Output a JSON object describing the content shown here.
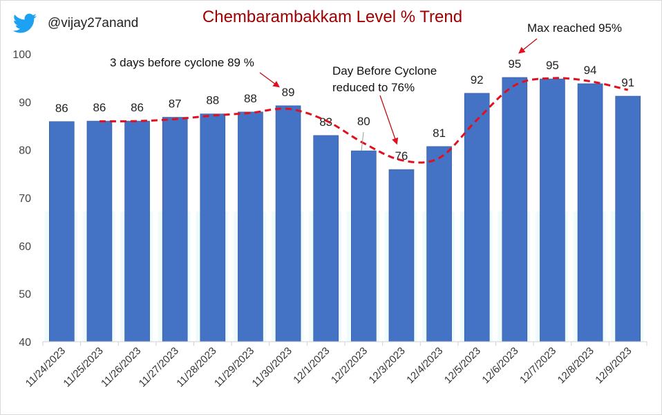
{
  "header": {
    "handle": "@vijay27anand",
    "logo_icon": "twitter-bird-icon",
    "logo_color": "#1DA1F2"
  },
  "chart_data": {
    "type": "bar",
    "title": "Chembarambakkam  Level % Trend",
    "title_color": "#a00000",
    "categories": [
      "11/24/2023",
      "11/25/2023",
      "11/26/2023",
      "11/27/2023",
      "11/28/2023",
      "11/29/2023",
      "11/30/2023",
      "12/1/2023",
      "12/2/2023",
      "12/3/2023",
      "12/4/2023",
      "12/5/2023",
      "12/6/2023",
      "12/7/2023",
      "12/8/2023",
      "12/9/2023"
    ],
    "values": [
      85.9,
      86.0,
      86.0,
      86.8,
      87.5,
      87.9,
      89.2,
      83.0,
      79.8,
      75.9,
      80.7,
      91.8,
      95.1,
      94.8,
      93.8,
      91.2
    ],
    "data_labels": [
      "86",
      "86",
      "86",
      "87",
      "88",
      "88",
      "89",
      "83",
      "80",
      "76",
      "81",
      "92",
      "95",
      "95",
      "94",
      "91"
    ],
    "ylim": [
      40,
      100
    ],
    "yticks": [
      "40",
      "50",
      "60",
      "70",
      "80",
      "90",
      "100"
    ],
    "grid": false,
    "legend": "none",
    "bar_color": "#4472c4",
    "trendline": {
      "type": "2-period moving average",
      "style": "dashed",
      "color": "#e0101e"
    },
    "annotations": [
      {
        "text": "3 days before cyclone 89 %",
        "target": "11/30/2023"
      },
      {
        "text": "Day Before Cyclone",
        "text2": "reduced to 76%",
        "target": "12/3/2023"
      },
      {
        "text": "Max reached 95%",
        "target": "12/6/2023"
      }
    ]
  }
}
